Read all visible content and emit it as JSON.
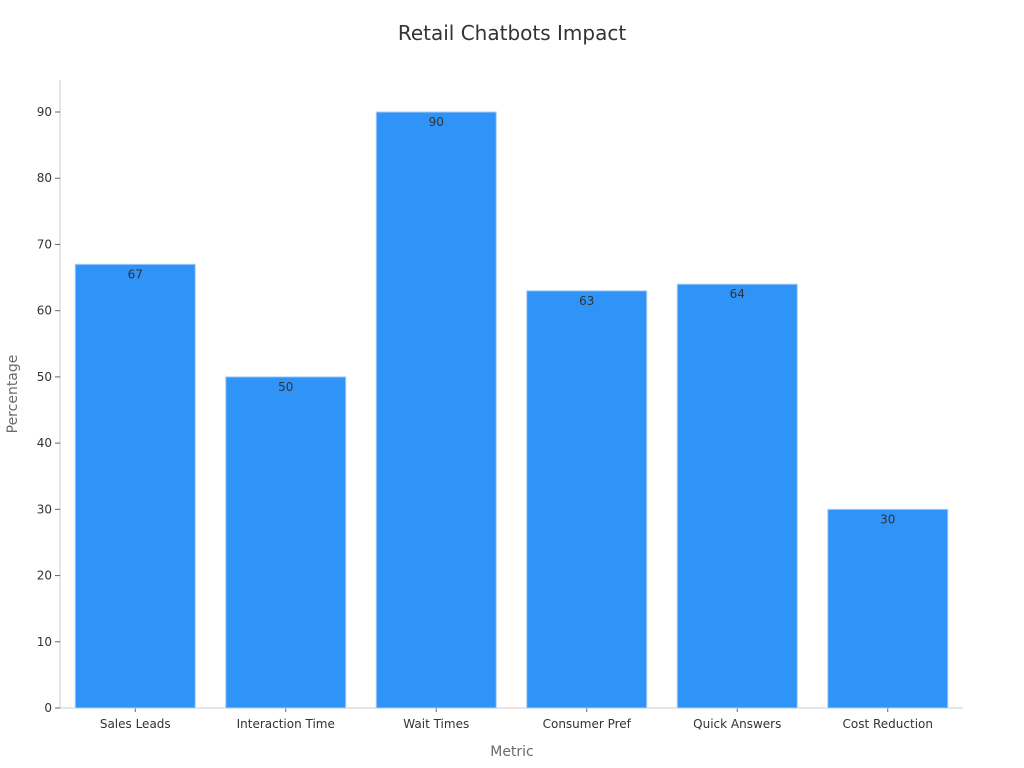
{
  "chart_data": {
    "type": "bar",
    "title": "Retail Chatbots Impact",
    "xlabel": "Metric",
    "ylabel": "Percentage",
    "categories": [
      "Sales Leads",
      "Interaction Time",
      "Wait Times",
      "Consumer Pref",
      "Quick Answers",
      "Cost Reduction"
    ],
    "values": [
      67,
      50,
      90,
      63,
      64,
      30
    ],
    "ylim": [
      0,
      95
    ],
    "yticks": [
      0,
      10,
      20,
      30,
      40,
      50,
      60,
      70,
      80,
      90
    ],
    "grid": false,
    "bar_color": "#2f93f7",
    "data_labels": true
  }
}
